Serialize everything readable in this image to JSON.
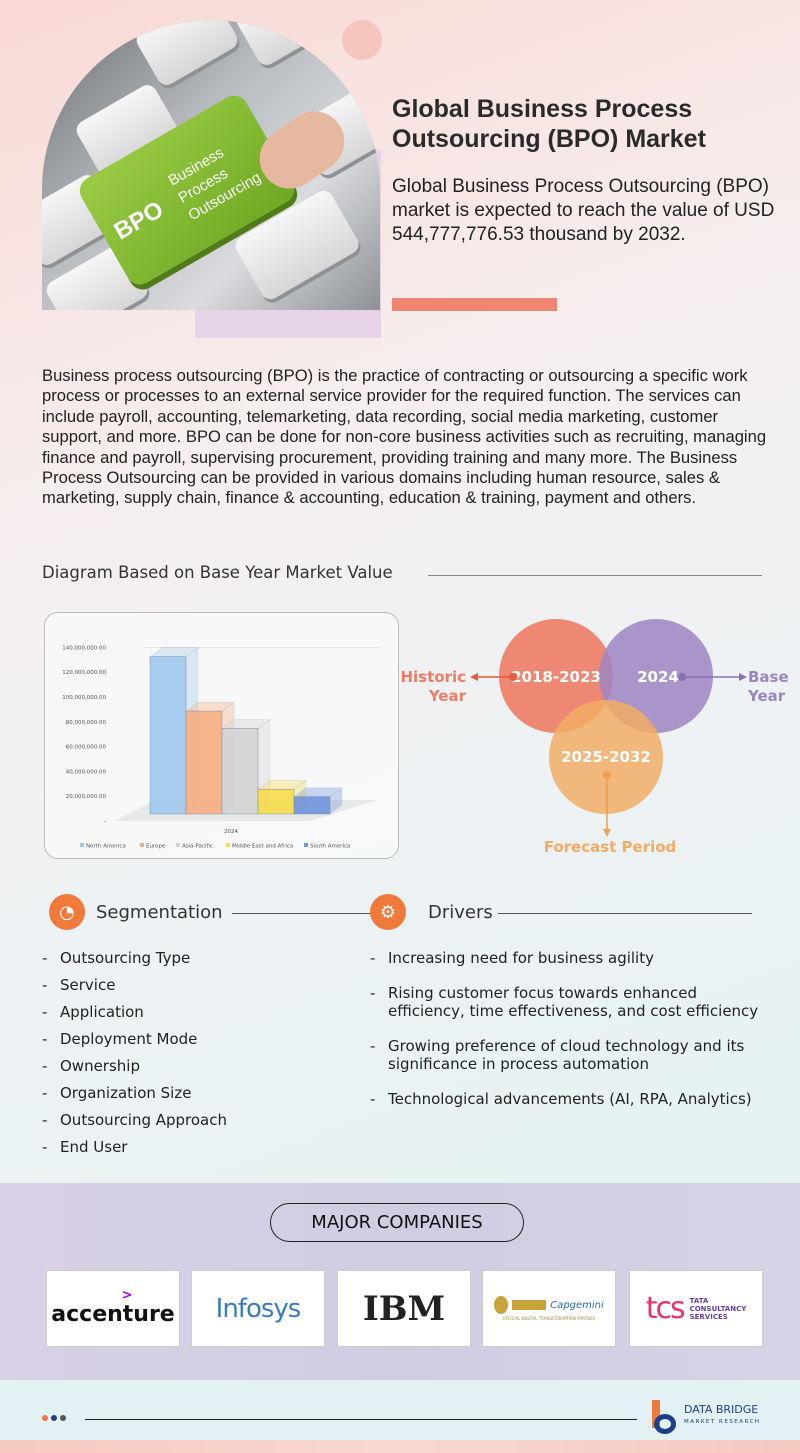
{
  "header": {
    "title": "Global Business Process Outsourcing (BPO) Market",
    "description": "Global Business Process Outsourcing (BPO) market is expected to reach the value of USD   544,777,776.53 thousand by 2032.",
    "hero_key_text": [
      "BPO",
      "Business",
      "Process",
      "Outsourcing"
    ]
  },
  "intro": "Business process outsourcing (BPO) is the practice of contracting or outsourcing a specific work process or processes to an external service provider for the required function. The services can include payroll, accounting, telemarketing, data recording, social media marketing, customer support, and more. BPO can be done for non-core business activities such as recruiting, managing finance and payroll, supervising procurement, providing training and many more. The Business Process Outsourcing can be provided in various domains including human resource, sales & marketing, supply chain, finance & accounting, education & training, payment and others.",
  "diagram_heading": "Diagram Based on Base Year Market Value",
  "chart_data": {
    "type": "bar",
    "title": "",
    "xlabel": "",
    "ylabel": "",
    "categories": [
      "2024"
    ],
    "ylim": [
      0,
      140000000
    ],
    "yticks": [
      "-",
      "20,000,000.00",
      "40,000,000.00",
      "60,000,000.00",
      "80,000,000.00",
      "100,000,000.00",
      "120,000,000.00",
      "140,000,000.00"
    ],
    "x_tick": "2024",
    "grid": true,
    "legend": "bottom",
    "series": [
      {
        "name": "North America",
        "values": [
          127000000
        ],
        "color": "#9fc8ef"
      },
      {
        "name": "Europe",
        "values": [
          83000000
        ],
        "color": "#f7ae82"
      },
      {
        "name": "Asia-Pacific",
        "values": [
          69000000
        ],
        "color": "#d3d3d3"
      },
      {
        "name": "Middle East and Africa",
        "values": [
          20000000
        ],
        "color": "#f8dc4a"
      },
      {
        "name": "South America",
        "values": [
          14000000
        ],
        "color": "#6f93dc"
      }
    ]
  },
  "venn": {
    "historic": {
      "years": "2018-2023",
      "label1": "Historic",
      "label2": "Year",
      "color": "#ee7c64"
    },
    "base": {
      "years": "2024",
      "label1": "Base",
      "label2": "Year",
      "color": "#9d85c2"
    },
    "forecast": {
      "years": "2025-2032",
      "label": "Forecast Period",
      "color": "#f2ad64"
    }
  },
  "segmentation": {
    "title": "Segmentation",
    "items": [
      "Outsourcing Type",
      "Service",
      "Application",
      "Deployment Mode",
      "Ownership",
      "Organization Size",
      "Outsourcing Approach",
      "End User"
    ]
  },
  "drivers": {
    "title": "Drivers",
    "items": [
      "Increasing need for business agility",
      "Rising customer focus towards enhanced efficiency, time effectiveness, and cost efficiency",
      "Growing preference of cloud technology and its significance in process automation",
      "Technological advancements (AI, RPA, Analytics)"
    ]
  },
  "companies": {
    "title": "MAJOR COMPANIES",
    "logos": [
      "accenture",
      "Infosys",
      "IBM",
      "Capgemini",
      "tcs",
      "TATA",
      "CONSULTANCY",
      "SERVICES",
      "OFFICIAL DIGITAL TRANSFORMATION PARTNER"
    ]
  },
  "footer": {
    "brand": "DATA BRIDGE",
    "brand_sub": "MARKET RESEARCH"
  }
}
